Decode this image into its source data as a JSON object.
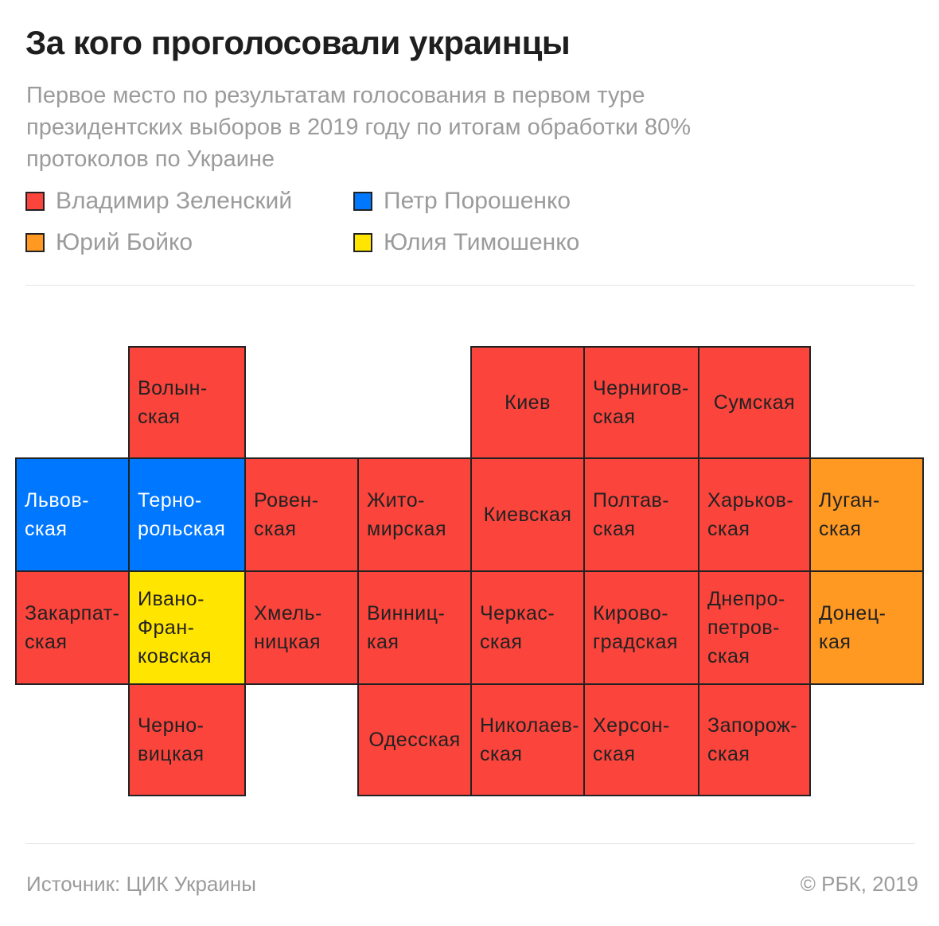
{
  "title": "За кого проголосовали украинцы",
  "subtitle": "Первое место по результатам голосования в первом туре президентских выборов в 2019 году по итогам обработки 80% протоколов по Украине",
  "legend": [
    {
      "key": "zelensky",
      "label": "Владимир Зеленский",
      "color": "#fa443c"
    },
    {
      "key": "poroshenko",
      "label": "Петр Порошенко",
      "color": "#0077ff"
    },
    {
      "key": "boyko",
      "label": "Юрий Бойко",
      "color": "#ff9922"
    },
    {
      "key": "tymoshenko",
      "label": "Юлия Тимошенко",
      "color": "#ffe500"
    }
  ],
  "regions": [
    {
      "label": "Волын-\nская",
      "winner": "zelensky"
    },
    {
      "label": "Киев",
      "winner": "zelensky"
    },
    {
      "label": "Чернигов-\nская",
      "winner": "zelensky"
    },
    {
      "label": "Сумская",
      "winner": "zelensky"
    },
    {
      "label": "Львов-\nская",
      "winner": "poroshenko"
    },
    {
      "label": "Терно-\npольская",
      "winner": "poroshenko"
    },
    {
      "label": "Ровен-\nская",
      "winner": "zelensky"
    },
    {
      "label": "Жито-\nмирская",
      "winner": "zelensky"
    },
    {
      "label": "Киевская",
      "winner": "zelensky"
    },
    {
      "label": "Полтав-\nская",
      "winner": "zelensky"
    },
    {
      "label": "Харьков-\nская",
      "winner": "zelensky"
    },
    {
      "label": "Луган-\nская",
      "winner": "boyko"
    },
    {
      "label": "Закарпат-\nская",
      "winner": "zelensky"
    },
    {
      "label": "Ивано-\nФран-\nковская",
      "winner": "tymoshenko"
    },
    {
      "label": "Хмель-\nницкая",
      "winner": "zelensky"
    },
    {
      "label": "Винниц-\nкая",
      "winner": "zelensky"
    },
    {
      "label": "Черкас-\nская",
      "winner": "zelensky"
    },
    {
      "label": "Кирово-\nградская",
      "winner": "zelensky"
    },
    {
      "label": "Днепро-\nпетров-\nская",
      "winner": "zelensky"
    },
    {
      "label": "Донец-\nкая",
      "winner": "boyko"
    },
    {
      "label": "Черно-\nвицкая",
      "winner": "zelensky"
    },
    {
      "label": "Одесская",
      "winner": "zelensky"
    },
    {
      "label": "Николаев-\nская",
      "winner": "zelensky"
    },
    {
      "label": "Херсон-\nская",
      "winner": "zelensky"
    },
    {
      "label": "Запорож-\nская",
      "winner": "zelensky"
    }
  ],
  "footer": {
    "source": "Источник: ЦИК Украины",
    "copyright": "© РБК, 2019"
  }
}
